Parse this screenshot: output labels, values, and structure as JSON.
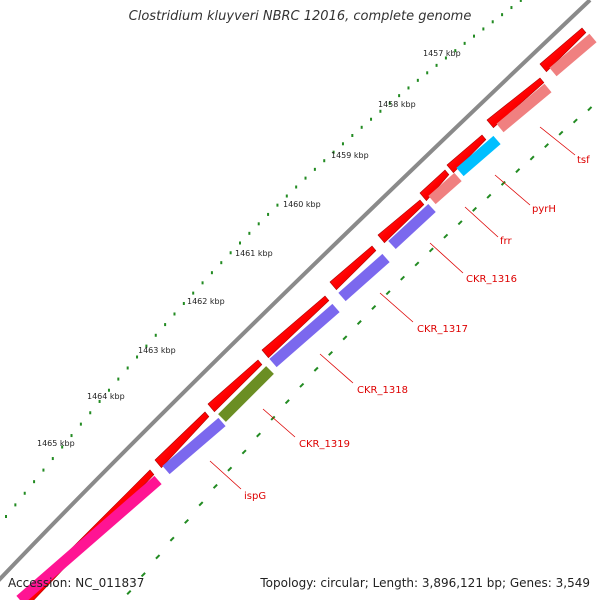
{
  "title": "Clostridium kluyveri NBRC 12016, complete genome",
  "footer": {
    "accession": "Accession: NC_011837",
    "summary": "Topology: circular; Length: 3,896,121 bp; Genes: 3,549"
  },
  "ticks": [
    "1457 kbp",
    "1458 kbp",
    "1459 kbp",
    "1460 kbp",
    "1461 kbp",
    "1462 kbp",
    "1463 kbp",
    "1464 kbp",
    "1465 kbp"
  ],
  "genes": [
    {
      "name": "tsf",
      "color": "#f08080"
    },
    {
      "name": "pyrH",
      "color": "#00bfff"
    },
    {
      "name": "frr",
      "color": "#f08080"
    },
    {
      "name": "CKR_1316",
      "color": "#7b68ee"
    },
    {
      "name": "CKR_1317",
      "color": "#7b68ee"
    },
    {
      "name": "CKR_1318",
      "color": "#7b68ee"
    },
    {
      "name": "CKR_1319",
      "color": "#6b8e23"
    },
    {
      "name": "ispG",
      "color": "#7b68ee"
    }
  ],
  "colors": {
    "forward_strand": "#ff0000",
    "rrna_like": "#ff1493",
    "backbone": "#888888",
    "tick_dots": "#228b22",
    "label": "#dd0000"
  }
}
